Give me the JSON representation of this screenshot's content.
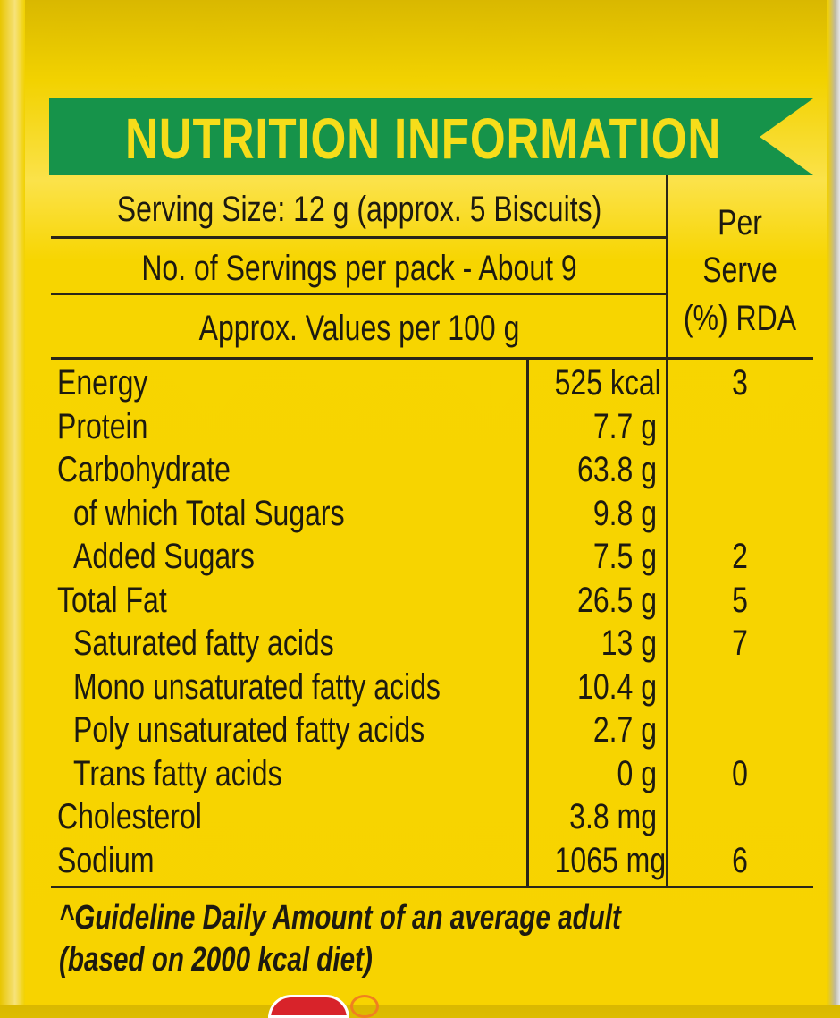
{
  "title": "NUTRITION INFORMATION",
  "header": {
    "serving_size": "Serving Size: 12 g (approx. 5 Biscuits)",
    "servings_per_pack": "No. of Servings per pack - About 9",
    "values_per": "Approx. Values per 100 g",
    "rda_col": [
      "Per",
      "Serve",
      "(%) RDA"
    ]
  },
  "rows": [
    {
      "name": "Energy",
      "value": "525 kcal",
      "rda": "3",
      "indent": false
    },
    {
      "name": "Protein",
      "value": "7.7 g",
      "rda": "",
      "indent": false
    },
    {
      "name": "Carbohydrate",
      "value": "63.8 g",
      "rda": "",
      "indent": false
    },
    {
      "name": "of which Total Sugars",
      "value": "9.8 g",
      "rda": "",
      "indent": true
    },
    {
      "name": "Added Sugars",
      "value": "7.5 g",
      "rda": "2",
      "indent": true
    },
    {
      "name": "Total Fat",
      "value": "26.5 g",
      "rda": "5",
      "indent": false
    },
    {
      "name": "Saturated fatty acids",
      "value": "13 g",
      "rda": "7",
      "indent": true
    },
    {
      "name": "Mono unsaturated fatty acids",
      "value": "10.4 g",
      "rda": "",
      "indent": true
    },
    {
      "name": "Poly unsaturated fatty acids",
      "value": "2.7 g",
      "rda": "",
      "indent": true
    },
    {
      "name": "Trans fatty acids",
      "value": "0 g",
      "rda": "0",
      "indent": true
    },
    {
      "name": "Cholesterol",
      "value": "3.8 mg",
      "rda": "",
      "indent": false
    },
    {
      "name": "Sodium",
      "value": "1065 mg",
      "rda": "6",
      "indent": false
    }
  ],
  "footnote": [
    "^Guideline Daily Amount of an average adult",
    "(based on 2000 kcal diet)"
  ],
  "colors": {
    "background": "#f7d300",
    "banner": "#16934a",
    "banner_text": "#f6dd1a",
    "ink": "#1d1a10"
  }
}
